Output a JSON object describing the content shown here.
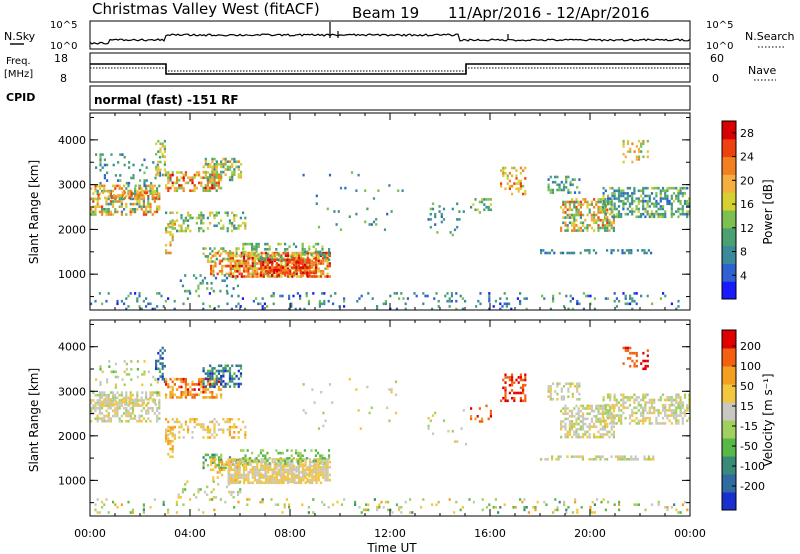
{
  "header": {
    "station": "Christmas Valley West (fitACF)",
    "beam": "Beam 19",
    "dates": "11/Apr/2016 - 12/Apr/2016"
  },
  "top_panels": {
    "nsky_label": "N.Sky",
    "nsky_ticks": [
      "10^5",
      "10^0"
    ],
    "nsearch_label": "N.Search",
    "nsearch_ticks": [
      "10^5",
      "10^0"
    ],
    "freq_label": [
      "Freq.",
      "[MHz]"
    ],
    "freq_ticks": [
      "18",
      "8"
    ],
    "nave_label": "Nave",
    "nave_ticks": [
      "60",
      "0"
    ],
    "cpid_label": "CPID",
    "cpid_text": "normal (fast) -151 RF"
  },
  "chart_data": [
    {
      "type": "heatmap",
      "panel": "power",
      "xlabel": "",
      "ylabel": "Slant Range [km]",
      "x_ticks": [
        "00:00",
        "04:00",
        "08:00",
        "12:00",
        "16:00",
        "20:00",
        "00:00"
      ],
      "y_ticks": [
        "1000",
        "2000",
        "3000",
        "4000"
      ],
      "ylim": [
        200,
        4600
      ],
      "xlim_hours": [
        0,
        24
      ],
      "colorbar": {
        "label": "Power [dB]",
        "ticks": [
          "4",
          "8",
          "12",
          "16",
          "20",
          "24",
          "28"
        ],
        "colors": [
          "#1a1aff",
          "#2f62d0",
          "#3a8a9a",
          "#4aa070",
          "#7cc050",
          "#d6d030",
          "#f3b040",
          "#f38020",
          "#ef4010",
          "#d80000"
        ]
      }
    },
    {
      "type": "heatmap",
      "panel": "velocity",
      "xlabel": "Time UT",
      "ylabel": "Slant Range [km]",
      "x_ticks": [
        "00:00",
        "04:00",
        "08:00",
        "12:00",
        "16:00",
        "20:00",
        "00:00"
      ],
      "y_ticks": [
        "1000",
        "2000",
        "3000",
        "4000"
      ],
      "ylim": [
        200,
        4600
      ],
      "xlim_hours": [
        0,
        24
      ],
      "colorbar": {
        "label": "Velocity [m s⁻¹]",
        "ticks": [
          "200",
          "100",
          "50",
          "15",
          "-15",
          "-50",
          "-100",
          "-200"
        ],
        "colors": [
          "#1a2fd0",
          "#2f6aa0",
          "#3a8a7a",
          "#5ab848",
          "#a0d060",
          "#c8c8c0",
          "#f2c640",
          "#f3a020",
          "#f36010",
          "#e00000"
        ]
      }
    }
  ]
}
